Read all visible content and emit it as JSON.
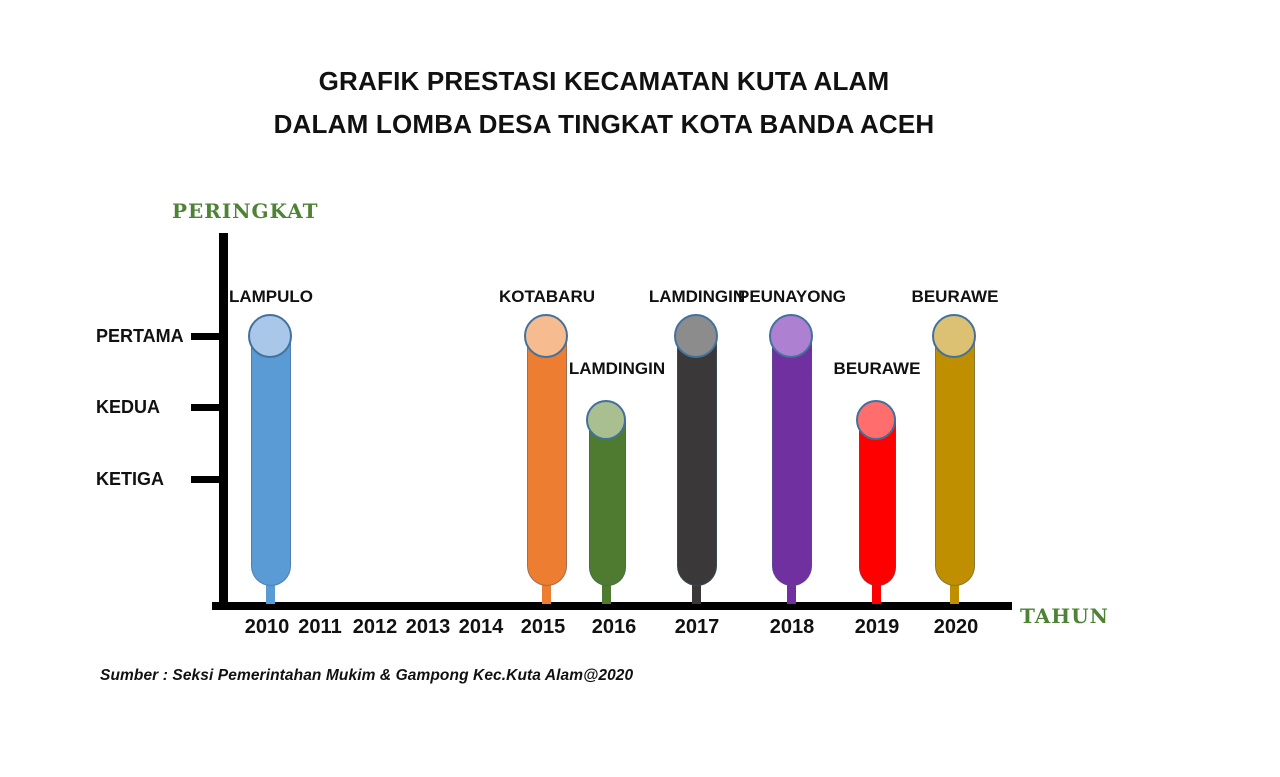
{
  "title": {
    "line1": "GRAFIK PRESTASI KECAMATAN KUTA ALAM",
    "line2": "DALAM LOMBA DESA TINGKAT KOTA BANDA ACEH"
  },
  "source": "Sumber : Seksi Pemerintahan Mukim & Gampong Kec.Kuta Alam@2020",
  "colors": {
    "axis": "#000000",
    "axis_name_green": "#4E8234",
    "cap_border_blue": "#41719C",
    "text": "#111111"
  },
  "chart_data": {
    "type": "bar",
    "title": "GRAFIK PRESTASI KECAMATAN KUTA ALAM DALAM LOMBA DESA TINGKAT KOTA BANDA ACEH",
    "xlabel": "TAHUN",
    "ylabel": "PERINGKAT",
    "grid": false,
    "legend": false,
    "x_axis_categories": [
      "2010",
      "2011",
      "2012",
      "2013",
      "2014",
      "2015",
      "2016",
      "2017",
      "2018",
      "2019",
      "2020"
    ],
    "y_axis_categories": [
      "PERTAMA",
      "KEDUA",
      "KETIGA"
    ],
    "points": [
      {
        "year": "2010",
        "village": "LAMPULO",
        "rank": 1,
        "rank_label": "PERTAMA",
        "bar_color": "#5B9BD5",
        "cap_color": "#A9C7E9"
      },
      {
        "year": "2015",
        "village": "KOTABARU",
        "rank": 1,
        "rank_label": "PERTAMA",
        "bar_color": "#ED7D31",
        "cap_color": "#F6BC8F"
      },
      {
        "year": "2016",
        "village": "LAMDINGIN",
        "rank": 2,
        "rank_label": "KEDUA",
        "bar_color": "#4E7B30",
        "cap_color": "#A9BF8F"
      },
      {
        "year": "2017",
        "village": "LAMDINGIN",
        "rank": 1,
        "rank_label": "PERTAMA",
        "bar_color": "#3A3838",
        "cap_color": "#8C8C8C"
      },
      {
        "year": "2018",
        "village": "PEUNAYONG",
        "rank": 1,
        "rank_label": "PERTAMA",
        "bar_color": "#7030A0",
        "cap_color": "#AE80D2"
      },
      {
        "year": "2019",
        "village": "BEURAWE",
        "rank": 2,
        "rank_label": "KEDUA",
        "bar_color": "#FF0000",
        "cap_color": "#FF6D6D"
      },
      {
        "year": "2020",
        "village": "BEURAWE",
        "rank": 1,
        "rank_label": "PERTAMA",
        "bar_color": "#BF8F00",
        "cap_color": "#DCC173"
      }
    ]
  }
}
